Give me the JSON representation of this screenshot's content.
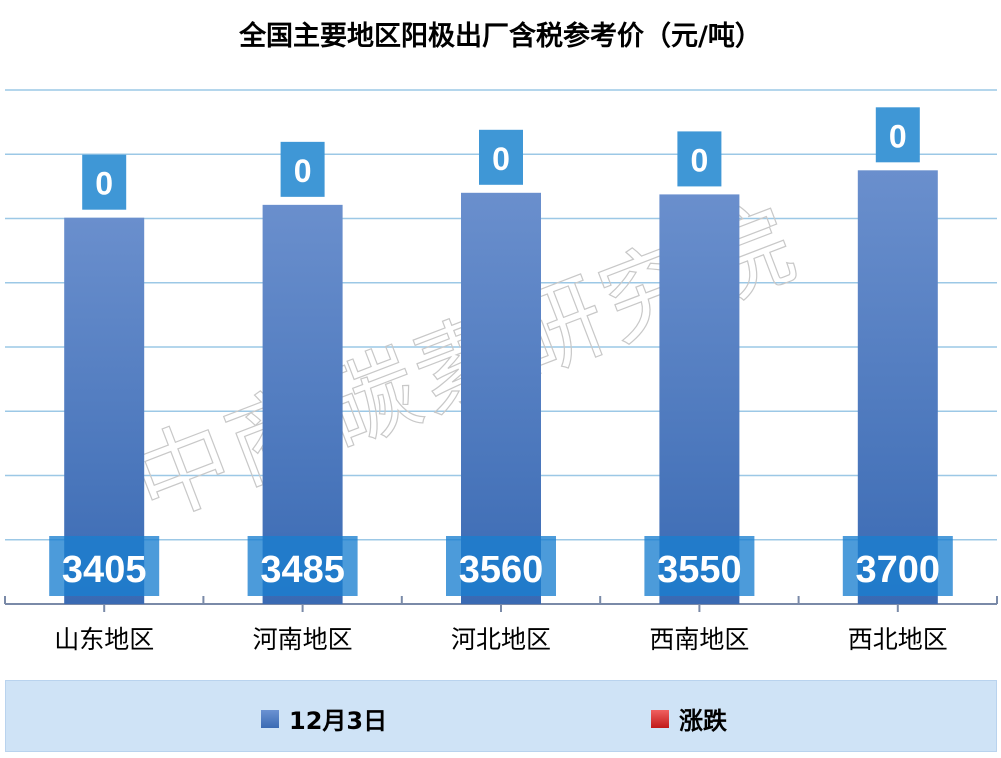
{
  "chart_data": {
    "type": "bar",
    "title": "全国主要地区阳极出厂含税参考价（元/吨）",
    "categories": [
      "山东地区",
      "河南地区",
      "河北地区",
      "西南地区",
      "西北地区"
    ],
    "series": [
      {
        "name": "12月3日",
        "values": [
          3405,
          3485,
          3560,
          3550,
          3700
        ],
        "color": "#4a78c0"
      },
      {
        "name": "涨跌",
        "values": [
          0,
          0,
          0,
          0,
          0
        ],
        "color": "#e03030"
      }
    ],
    "ylim": [
      1000,
      4200
    ],
    "y_tick_step": 400,
    "y_tick_labels_visible": false,
    "grid": true,
    "legend": "bottom"
  },
  "watermark": "中商碳素研究院"
}
